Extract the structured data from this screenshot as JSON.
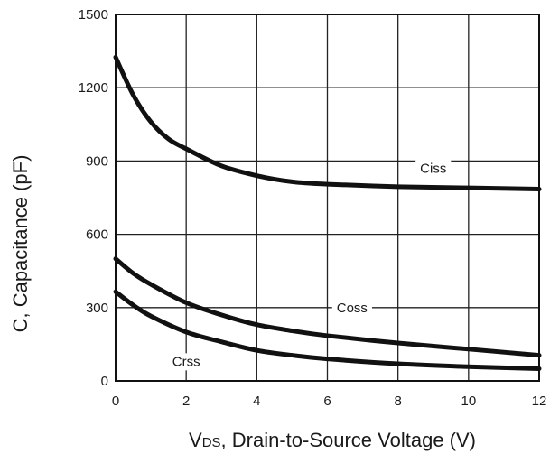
{
  "chart_data": {
    "type": "line",
    "title": "",
    "xlabel_prefix": "V",
    "xlabel_subscript": "DS",
    "xlabel_rest": ", Drain-to-Source Voltage (V)",
    "ylabel": "C, Capacitance (pF)",
    "xlim": [
      0,
      12
    ],
    "ylim": [
      0,
      1500
    ],
    "x_ticks": [
      0,
      2,
      4,
      6,
      8,
      10,
      12
    ],
    "y_ticks": [
      0,
      300,
      600,
      900,
      1200,
      1500
    ],
    "grid": true,
    "line_color": "#111111",
    "series": [
      {
        "name": "Ciss",
        "x": [
          0,
          0.5,
          1,
          1.5,
          2,
          3,
          4,
          5,
          6,
          8,
          10,
          12
        ],
        "values": [
          1325,
          1170,
          1060,
          990,
          950,
          880,
          840,
          815,
          805,
          795,
          790,
          785
        ]
      },
      {
        "name": "Coss",
        "x": [
          0,
          0.5,
          1,
          2,
          3,
          4,
          5,
          6,
          8,
          10,
          12
        ],
        "values": [
          500,
          440,
          395,
          320,
          270,
          230,
          205,
          185,
          155,
          130,
          105
        ]
      },
      {
        "name": "Crss",
        "x": [
          0,
          0.5,
          1,
          2,
          3,
          4,
          5,
          6,
          8,
          10,
          12
        ],
        "values": [
          365,
          310,
          265,
          200,
          160,
          125,
          105,
          90,
          70,
          58,
          50
        ]
      }
    ],
    "labels": [
      {
        "text": "Ciss",
        "x": 9.0,
        "y": 870
      },
      {
        "text": "Coss",
        "x": 6.7,
        "y": 300
      },
      {
        "text": "Crss",
        "x": 2.0,
        "y": 80
      }
    ]
  }
}
